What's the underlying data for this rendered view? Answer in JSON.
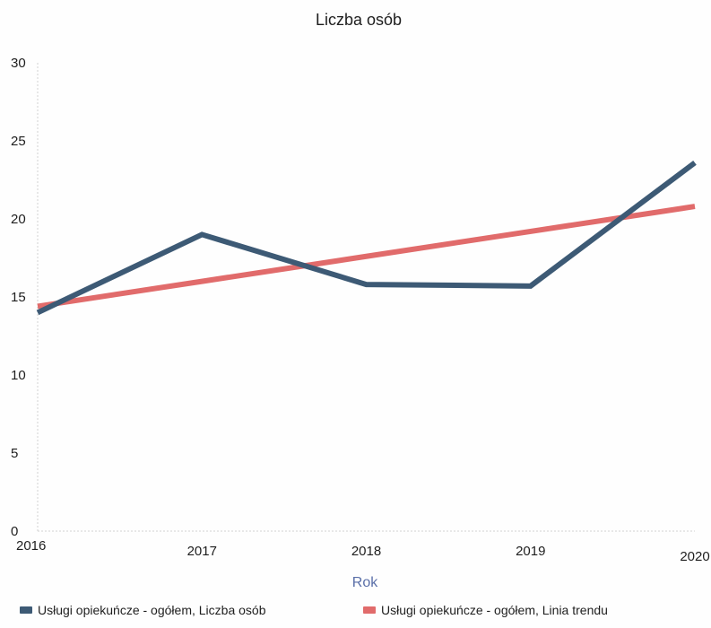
{
  "chart_data": {
    "type": "line",
    "title": "Liczba osób",
    "xlabel": "Rok",
    "ylabel": "",
    "x": [
      "2016",
      "2017",
      "2018",
      "2019",
      "2020"
    ],
    "ylim": [
      0,
      30
    ],
    "yticks": [
      "0",
      "5",
      "10",
      "15",
      "20",
      "25",
      "30"
    ],
    "grid": false,
    "legend_position": "bottom",
    "series": [
      {
        "name": "Usługi opiekuńcze - ogółem, Liczba osób",
        "color": "#3d5a75",
        "values": [
          14.0,
          19.0,
          15.8,
          15.7,
          23.6
        ]
      },
      {
        "name": "Usługi opiekuńcze - ogółem, Linia trendu",
        "color": "#e16b6b",
        "values": [
          14.4,
          16.0,
          17.6,
          19.2,
          20.8
        ]
      }
    ]
  }
}
